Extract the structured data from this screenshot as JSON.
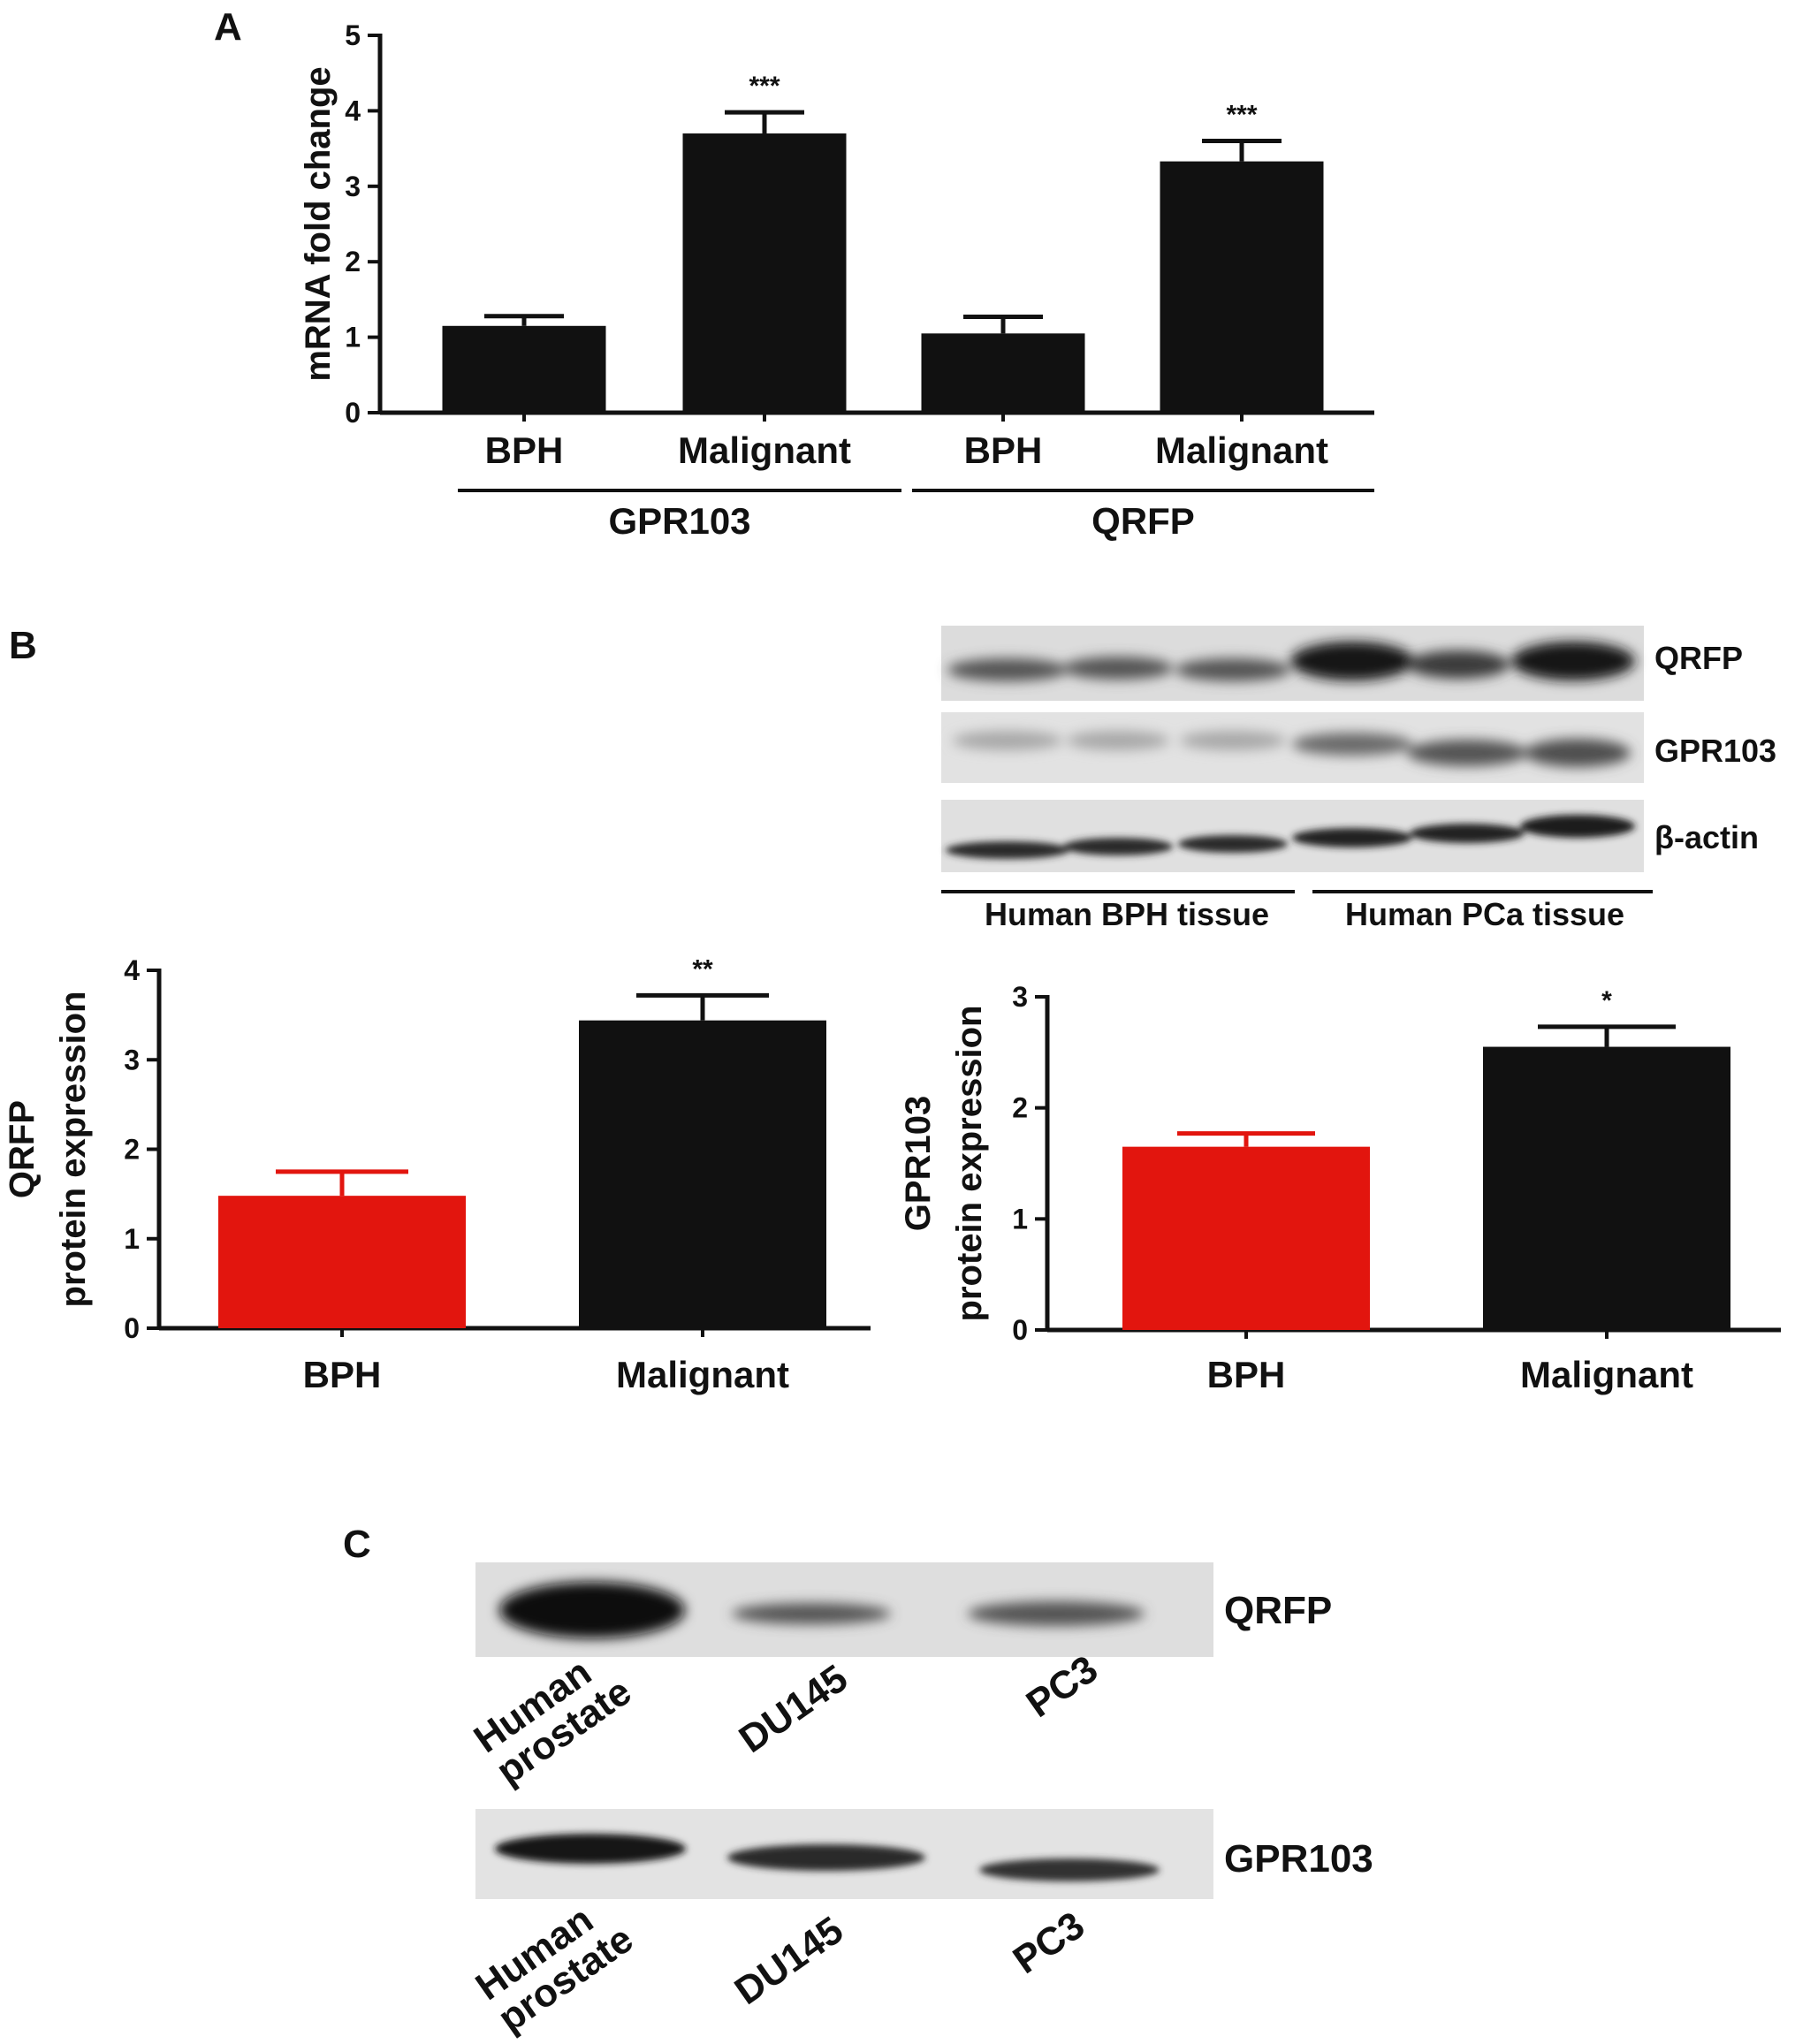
{
  "colors": {
    "black": "#111111",
    "red": "#e2150e",
    "blot_bg": "#dadada",
    "band": "#2a2a2a"
  },
  "panels": {
    "A": {
      "letter": "A"
    },
    "B": {
      "letter": "B",
      "blot_labels": [
        "QRFP",
        "GPR103",
        "β-actin"
      ],
      "group_labels": [
        "Human BPH tissue",
        "Human PCa tissue"
      ]
    },
    "C": {
      "letter": "C",
      "top_blot_label": "QRFP",
      "bottom_blot_label": "GPR103",
      "lanes_top": [
        [
          "Human",
          "prostate"
        ],
        [
          "DU145"
        ],
        [
          "PC3"
        ]
      ],
      "lanes_bottom": [
        [
          "Human",
          "prostate"
        ],
        [
          "DU145"
        ],
        [
          "PC3"
        ]
      ]
    }
  },
  "chart_data": [
    {
      "id": "A",
      "type": "bar",
      "ylabel": "mRNA fold change",
      "ylim": [
        0,
        5
      ],
      "yticks": [
        "0",
        "1",
        "2",
        "3",
        "4",
        "5"
      ],
      "categories": [
        "BPH",
        "Malignant",
        "BPH",
        "Malignant"
      ],
      "groups": [
        {
          "label": "GPR103",
          "span": [
            0,
            1
          ]
        },
        {
          "label": "QRFP",
          "span": [
            2,
            3
          ]
        }
      ],
      "values": [
        1.15,
        3.7,
        1.05,
        3.33
      ],
      "errors": [
        0.13,
        0.28,
        0.22,
        0.27
      ],
      "significance": [
        "",
        "***",
        "",
        "***"
      ],
      "bar_colors": [
        "#111111",
        "#111111",
        "#111111",
        "#111111"
      ]
    },
    {
      "id": "B-left",
      "type": "bar",
      "ylabel": [
        "QRFP",
        "protein expression"
      ],
      "ylim": [
        0,
        4
      ],
      "yticks": [
        "0",
        "1",
        "2",
        "3",
        "4"
      ],
      "categories": [
        "BPH",
        "Malignant"
      ],
      "values": [
        1.48,
        3.44
      ],
      "errors": [
        0.27,
        0.28
      ],
      "significance": [
        "",
        "**"
      ],
      "bar_colors": [
        "#e2150e",
        "#111111"
      ]
    },
    {
      "id": "B-right",
      "type": "bar",
      "ylabel": [
        "GPR103",
        "protein expression"
      ],
      "ylim": [
        0,
        3
      ],
      "yticks": [
        "0",
        "1",
        "2",
        "3"
      ],
      "categories": [
        "BPH",
        "Malignant"
      ],
      "values": [
        1.65,
        2.55
      ],
      "errors": [
        0.12,
        0.18
      ],
      "significance": [
        "",
        "*"
      ],
      "bar_colors": [
        "#e2150e",
        "#111111"
      ]
    }
  ]
}
